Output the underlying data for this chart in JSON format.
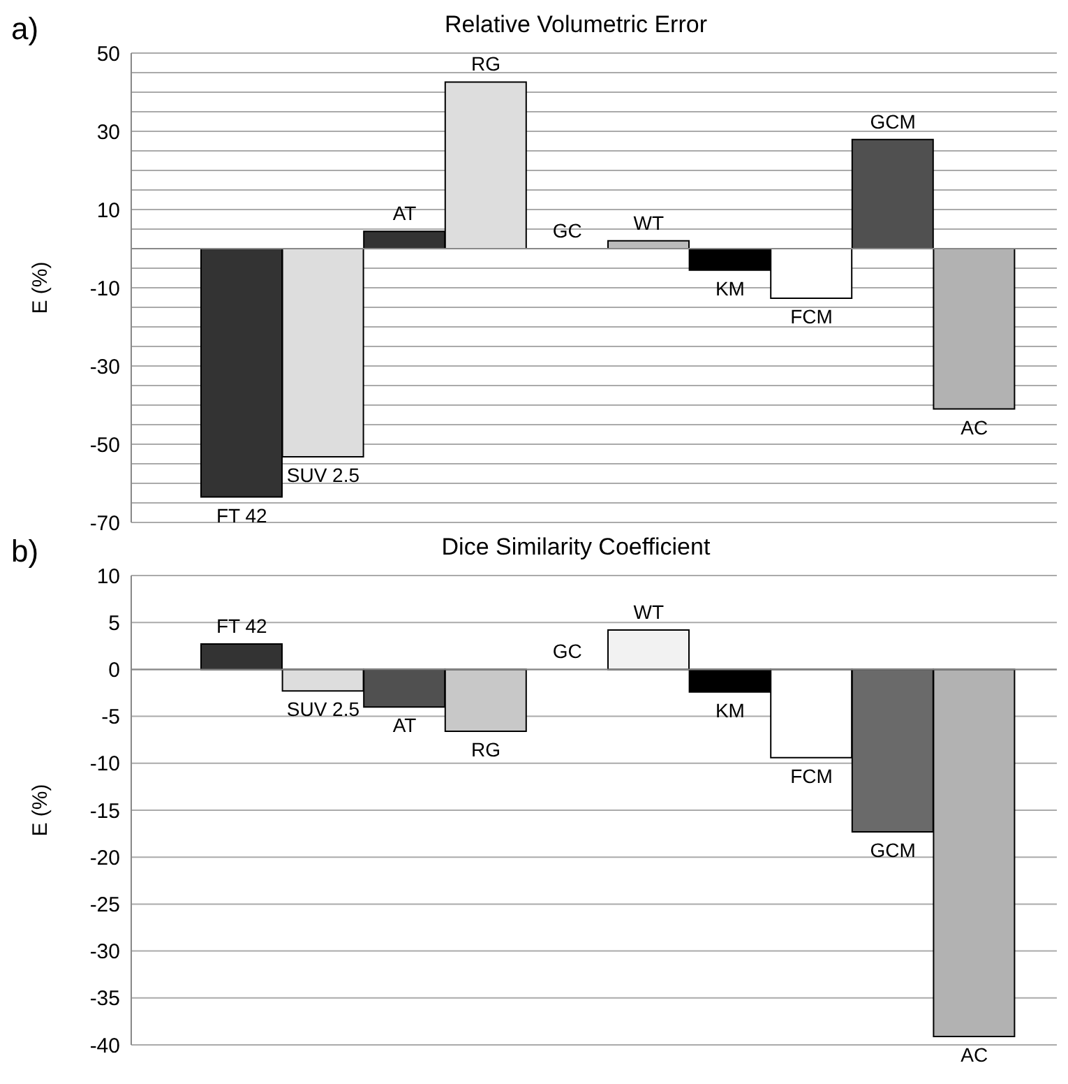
{
  "chart_data": [
    {
      "type": "bar",
      "title": "Relative Volumetric Error",
      "ylabel": "E (%)",
      "annotations": [
        "a)"
      ],
      "categories": [
        "FT 42",
        "SUV 2.5",
        "AT",
        "RG",
        "GC",
        "WT",
        "KM",
        "FCM",
        "GCM",
        "AC"
      ],
      "values": [
        -63.5,
        -53.2,
        4.4,
        42.6,
        0,
        2,
        -5.5,
        -12.7,
        27.9,
        -41
      ],
      "colors": [
        "#333333",
        "#dddddd",
        "#333333",
        "#dddddd",
        "#ffffff",
        "#bbbbbb",
        "#000000",
        "#ffffff",
        "#505050",
        "#b2b2b2"
      ],
      "ylim": [
        -70,
        50
      ],
      "yticks": [
        -70,
        {
          "value": -65,
          "label": null
        },
        {
          "value": -60,
          "label": null
        },
        {
          "value": -55,
          "label": null
        },
        -50,
        {
          "value": -45,
          "label": null
        },
        {
          "value": -40,
          "label": null
        },
        {
          "value": -35,
          "label": null
        },
        -30,
        {
          "value": -25,
          "label": null
        },
        {
          "value": -20,
          "label": null
        },
        {
          "value": -15,
          "label": null
        },
        -10,
        {
          "value": -5,
          "label": null
        },
        {
          "value": 0,
          "label": null
        },
        {
          "value": 5,
          "label": null
        },
        10,
        {
          "value": 15,
          "label": null
        },
        {
          "value": 20,
          "label": null
        },
        {
          "value": 25,
          "label": null
        },
        30,
        {
          "value": 35,
          "label": null
        },
        {
          "value": 40,
          "label": null
        },
        {
          "value": 45,
          "label": null
        },
        50
      ],
      "grid": "y",
      "tick_labels": "y"
    },
    {
      "type": "bar",
      "title": "Dice Similarity Coefficient",
      "ylabel": "E (%)",
      "annotations": [
        "b)"
      ],
      "categories": [
        "FT 42",
        "SUV 2.5",
        "AT",
        "RG",
        "GC",
        "WT",
        "KM",
        "FCM",
        "GCM",
        "AC"
      ],
      "values": [
        2.7,
        -2.3,
        -4.0,
        -6.6,
        0,
        4.2,
        -2.4,
        -9.4,
        -17.3,
        -39.1
      ],
      "colors": [
        "#333333",
        "#dddddd",
        "#505050",
        "#c8c8c8",
        "#ffffff",
        "#f2f2f2",
        "#000000",
        "#ffffff",
        "#6a6a6a",
        "#b2b2b2"
      ],
      "ylim": [
        -40,
        10
      ],
      "yticks": [
        -40,
        -35,
        -30,
        -25,
        -20,
        -15,
        -10,
        -5,
        0,
        5,
        10
      ],
      "grid": "y",
      "tick_labels": "y"
    }
  ]
}
